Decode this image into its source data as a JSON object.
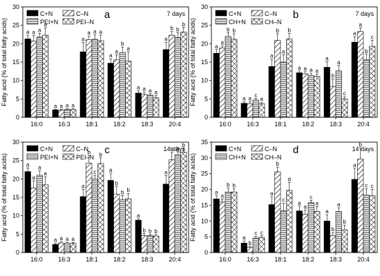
{
  "y_axis_title": "Fatty acid (% of total fatty acids)",
  "chart_data": [
    {
      "type": "bar",
      "panel_label": "a",
      "duration": "7 days",
      "categories": [
        "16:0",
        "16:3",
        "18:1",
        "18:2",
        "18:3",
        "20:4"
      ],
      "ylabel": "Fatty acid (% of total fatty acids)",
      "ylim": [
        0,
        30
      ],
      "yticks": [
        0,
        5,
        10,
        15,
        20,
        25,
        30
      ],
      "legend": "top-left",
      "series": [
        {
          "name": "C+N",
          "values": [
            21.3,
            2.0,
            17.8,
            14.7,
            6.6,
            18.4
          ],
          "errors": [
            1.0,
            0.2,
            2.5,
            1.2,
            0.6,
            2.0
          ],
          "letters": [
            "a",
            "a",
            "a",
            "a",
            "a",
            "a"
          ]
        },
        {
          "name": "C–N",
          "values": [
            20.7,
            2.0,
            21.1,
            15.6,
            6.2,
            22.3
          ],
          "errors": [
            1.5,
            0.2,
            1.0,
            1.4,
            0.6,
            1.0
          ],
          "letters": [
            "a",
            "a",
            "a",
            "a",
            "a",
            "b"
          ]
        },
        {
          "name": "PEI+N",
          "values": [
            21.8,
            2.1,
            21.2,
            17.6,
            6.0,
            21.7
          ],
          "errors": [
            1.0,
            0.2,
            1.2,
            1.5,
            0.4,
            1.3
          ],
          "letters": [
            "a",
            "a",
            "a",
            "b",
            "a",
            "b"
          ]
        },
        {
          "name": "PEI–N",
          "values": [
            22.3,
            2.1,
            20.8,
            15.3,
            5.3,
            23.2
          ],
          "errors": [
            2.0,
            0.2,
            1.5,
            2.5,
            0.6,
            1.2
          ],
          "letters": [
            "a",
            "a",
            "a",
            "a",
            "a",
            "b"
          ]
        }
      ]
    },
    {
      "type": "bar",
      "panel_label": "b",
      "duration": "7 days",
      "categories": [
        "16:0",
        "16:3",
        "18:1",
        "18:2",
        "18:3",
        "20:4"
      ],
      "ylabel": "Fatty acid (% of total fatty acids)",
      "ylim": [
        0,
        30
      ],
      "yticks": [
        0,
        5,
        10,
        15,
        20,
        25,
        30
      ],
      "legend": "top-left",
      "series": [
        {
          "name": "C+N",
          "values": [
            17.4,
            3.8,
            13.8,
            12.1,
            13.6,
            20.4
          ],
          "errors": [
            1.0,
            0.4,
            2.0,
            0.5,
            1.5,
            1.5
          ],
          "letters": [
            "a",
            "a",
            "a",
            "a",
            "a",
            "a"
          ]
        },
        {
          "name": "C–N",
          "values": [
            18.8,
            3.7,
            20.9,
            11.8,
            8.4,
            23.3
          ],
          "errors": [
            0.6,
            0.5,
            1.8,
            0.6,
            2.0,
            1.0
          ],
          "letters": [
            "a",
            "a",
            "b",
            "a",
            "b",
            "a"
          ]
        },
        {
          "name": "CH+N",
          "values": [
            22.0,
            4.7,
            15.0,
            11.4,
            12.6,
            15.6
          ],
          "errors": [
            1.0,
            0.5,
            2.0,
            0.6,
            1.5,
            1.5
          ],
          "letters": [
            "b",
            "c",
            "a",
            "a",
            "a",
            "b"
          ]
        },
        {
          "name": "CH–N",
          "values": [
            21.2,
            3.7,
            21.3,
            11.1,
            5.0,
            19.3
          ],
          "errors": [
            1.5,
            0.4,
            1.5,
            0.6,
            0.6,
            1.6
          ],
          "letters": [
            "b",
            "a",
            "b",
            "a",
            "c",
            "c"
          ]
        }
      ]
    },
    {
      "type": "bar",
      "panel_label": "c",
      "duration": "14 days",
      "categories": [
        "16:0",
        "16:3",
        "18:1",
        "18:2",
        "18:3",
        "20:4"
      ],
      "ylabel": "Fatty acid (% of total fatty acids)",
      "ylim": [
        0,
        30
      ],
      "yticks": [
        0,
        5,
        10,
        15,
        20,
        25,
        30
      ],
      "legend": "top-left",
      "series": [
        {
          "name": "C+N",
          "values": [
            22.0,
            2.2,
            15.2,
            19.6,
            8.8,
            18.6
          ],
          "errors": [
            1.0,
            0.3,
            2.0,
            2.0,
            0.4,
            2.3
          ],
          "letters": [
            "a",
            "a",
            "a",
            "a",
            "a",
            "a"
          ]
        },
        {
          "name": "C–N",
          "values": [
            17.5,
            2.6,
            24.3,
            15.9,
            4.6,
            25.2
          ],
          "errors": [
            2.0,
            0.4,
            2.0,
            2.0,
            0.6,
            2.0
          ],
          "letters": [
            "a",
            "a",
            "b",
            "b",
            "b",
            "b"
          ]
        },
        {
          "name": "PEI+N",
          "values": [
            21.0,
            2.5,
            20.0,
            14.3,
            4.6,
            26.6
          ],
          "errors": [
            1.2,
            0.3,
            1.0,
            1.2,
            0.4,
            0.8
          ],
          "letters": [
            "a",
            "a",
            "c",
            "b",
            "b",
            "b"
          ]
        },
        {
          "name": "PEI–N",
          "values": [
            18.4,
            2.5,
            24.2,
            14.6,
            4.5,
            27.3
          ],
          "errors": [
            2.2,
            0.3,
            1.5,
            1.5,
            0.4,
            1.0
          ],
          "letters": [
            "a",
            "a",
            "b",
            "b",
            "b",
            "b"
          ]
        }
      ]
    },
    {
      "type": "bar",
      "panel_label": "d",
      "duration": "14 days",
      "categories": [
        "16:0",
        "16:3",
        "18:1",
        "18:2",
        "18:3",
        "20:4"
      ],
      "ylabel": "Fatty acid (% of total fatty acids)",
      "ylim": [
        0,
        35
      ],
      "yticks": [
        0,
        5,
        10,
        15,
        20,
        25,
        30,
        35
      ],
      "legend": "top-left",
      "series": [
        {
          "name": "C+N",
          "values": [
            17.0,
            3.0,
            15.2,
            13.2,
            10.0,
            23.2
          ],
          "errors": [
            1.0,
            0.7,
            2.5,
            1.5,
            2.0,
            3.5
          ],
          "letters": [
            "a",
            "a",
            "a",
            "a",
            "a",
            "a"
          ]
        },
        {
          "name": "C–N",
          "values": [
            16.0,
            1.6,
            25.6,
            12.1,
            5.3,
            29.6
          ],
          "errors": [
            1.0,
            0.4,
            1.5,
            1.3,
            1.0,
            3.5
          ],
          "letters": [
            "a",
            "b",
            "b",
            "a",
            "b",
            "b"
          ]
        },
        {
          "name": "CH+N",
          "values": [
            19.2,
            4.6,
            13.2,
            15.8,
            13.0,
            18.2
          ],
          "errors": [
            1.2,
            0.5,
            2.5,
            0.7,
            1.2,
            2.0
          ],
          "letters": [
            "b",
            "c",
            "c",
            "c",
            "a",
            "c"
          ]
        },
        {
          "name": "CH–N",
          "values": [
            19.2,
            4.8,
            19.7,
            13.0,
            7.2,
            18.0
          ],
          "errors": [
            1.0,
            0.5,
            2.5,
            1.6,
            1.5,
            2.0
          ],
          "letters": [
            "b",
            "c",
            "d",
            "a",
            "b",
            "c"
          ]
        }
      ]
    }
  ]
}
